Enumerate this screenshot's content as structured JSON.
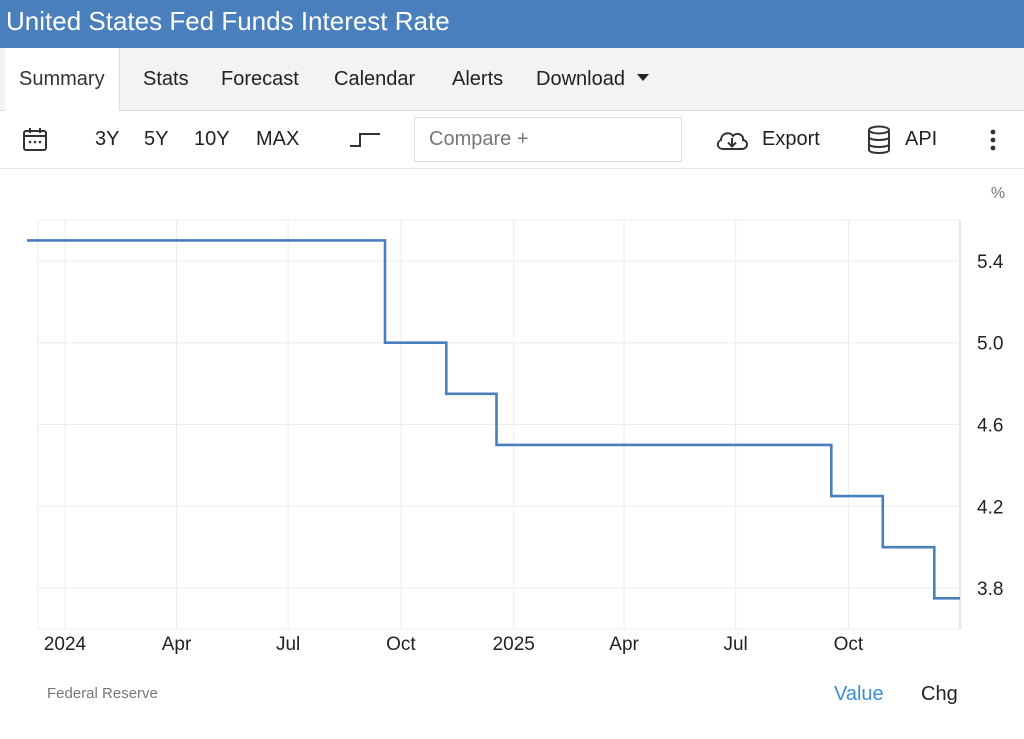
{
  "header": {
    "title": "United States Fed Funds Interest Rate"
  },
  "tabs": [
    {
      "label": "Summary",
      "active": true
    },
    {
      "label": "Stats"
    },
    {
      "label": "Forecast"
    },
    {
      "label": "Calendar"
    },
    {
      "label": "Alerts"
    },
    {
      "label": "Download"
    }
  ],
  "toolbar": {
    "ranges": [
      "3Y",
      "5Y",
      "10Y",
      "MAX"
    ],
    "compare_placeholder": "Compare +",
    "export_label": "Export",
    "api_label": "API",
    "icons": [
      "calendar-icon",
      "step-line-icon",
      "cloud-download-icon",
      "database-icon",
      "more-vertical-icon"
    ]
  },
  "chart_data": {
    "type": "line",
    "step": true,
    "unit": "%",
    "x": [
      "2023-12-01",
      "2024-09-18",
      "2024-11-07",
      "2024-12-18",
      "2025-09-17",
      "2025-10-29",
      "2025-12-10",
      "2025-12-31"
    ],
    "values": [
      5.5,
      5.0,
      4.75,
      4.5,
      4.25,
      4.0,
      3.75,
      3.75
    ],
    "y_ticks": [
      5.4,
      5.0,
      4.6,
      4.2,
      3.8
    ],
    "x_ticks": [
      {
        "date": "2024-01-01",
        "label": "2024"
      },
      {
        "date": "2024-04-01",
        "label": "Apr"
      },
      {
        "date": "2024-07-01",
        "label": "Jul"
      },
      {
        "date": "2024-10-01",
        "label": "Oct"
      },
      {
        "date": "2025-01-01",
        "label": "2025"
      },
      {
        "date": "2025-04-01",
        "label": "Apr"
      },
      {
        "date": "2025-07-01",
        "label": "Jul"
      },
      {
        "date": "2025-10-01",
        "label": "Oct"
      }
    ],
    "ylim": [
      3.6,
      5.6
    ],
    "xlim": [
      "2023-12-10",
      "2025-12-31"
    ],
    "grid": true,
    "line_color": "#4a7fbd"
  },
  "footer": {
    "source": "Federal Reserve",
    "value_label": "Value",
    "chg_label": "Chg",
    "value_color": "#3a8fd6"
  }
}
